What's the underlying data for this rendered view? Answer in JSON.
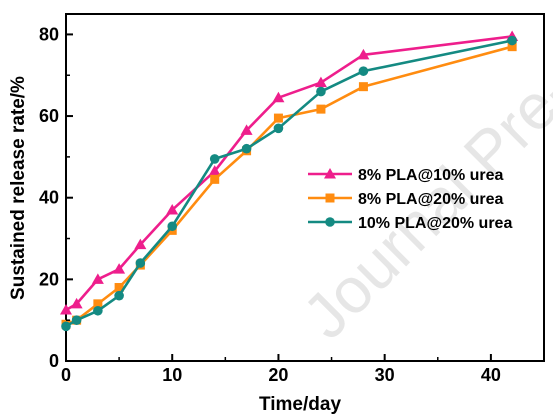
{
  "watermark": "Journal Pre-proof",
  "chart_data": {
    "type": "line",
    "xlabel": "Time/day",
    "ylabel": "Sustained release rate/%",
    "xlim": [
      0,
      45
    ],
    "ylim": [
      0,
      85
    ],
    "xticks": [
      0,
      10,
      20,
      30,
      40
    ],
    "yticks": [
      0,
      20,
      40,
      60,
      80
    ],
    "grid": false,
    "legend": "center-right",
    "series": [
      {
        "name": "8% PLA@10% urea",
        "color": "#ee1e8c",
        "marker": "triangle",
        "x": [
          0,
          1,
          3,
          5,
          7,
          10,
          14,
          17,
          20,
          24,
          28,
          42
        ],
        "y": [
          12.5,
          14.0,
          20.0,
          22.5,
          28.5,
          37.0,
          46.5,
          56.5,
          64.5,
          68.2,
          75.0,
          79.5
        ]
      },
      {
        "name": "8% PLA@20% urea",
        "color": "#ff8c10",
        "marker": "square",
        "x": [
          0,
          1,
          3,
          5,
          7,
          10,
          14,
          17,
          20,
          24,
          28,
          42
        ],
        "y": [
          9.0,
          10.0,
          14.0,
          18.0,
          23.5,
          32.0,
          44.5,
          51.5,
          59.5,
          61.7,
          67.2,
          77.0
        ]
      },
      {
        "name": "10% PLA@20% urea",
        "color": "#148a82",
        "marker": "circle",
        "x": [
          0,
          1,
          3,
          5,
          7,
          10,
          14,
          17,
          20,
          24,
          28,
          42
        ],
        "y": [
          8.5,
          10.0,
          12.3,
          16.0,
          24.0,
          33.0,
          49.5,
          52.0,
          57.0,
          66.0,
          71.0,
          78.5
        ]
      }
    ]
  }
}
